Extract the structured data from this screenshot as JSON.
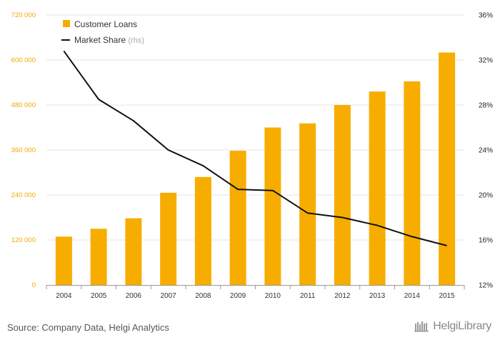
{
  "chart_data": {
    "type": "bar",
    "categories": [
      "2004",
      "2005",
      "2006",
      "2007",
      "2008",
      "2009",
      "2010",
      "2011",
      "2012",
      "2013",
      "2014",
      "2015"
    ],
    "series": [
      {
        "name": "Customer Loans",
        "type": "bar",
        "axis": "left",
        "values": [
          129000,
          150000,
          178000,
          246000,
          288000,
          358000,
          420000,
          431000,
          480000,
          516000,
          543000,
          620000
        ]
      },
      {
        "name": "Market Share",
        "type": "line",
        "axis": "right",
        "values": [
          32.8,
          28.5,
          26.6,
          24.0,
          22.6,
          20.5,
          20.4,
          18.4,
          18.0,
          17.3,
          16.3,
          15.5
        ]
      }
    ],
    "ylim_left": [
      0,
      720000
    ],
    "yticks_left": [
      "0",
      "120 000",
      "240 000",
      "360 000",
      "480 000",
      "600 000",
      "720 000"
    ],
    "ylim_right": [
      12,
      36
    ],
    "yticks_right": [
      "12%",
      "16%",
      "20%",
      "24%",
      "28%",
      "32%",
      "36%"
    ],
    "legend": [
      {
        "label": "Customer Loans",
        "color": "#f7ad00",
        "kind": "bar"
      },
      {
        "label": "Market Share",
        "suffix": "(rhs)",
        "color": "#111111",
        "kind": "line"
      }
    ],
    "legend_position": "top-left",
    "grid": true
  },
  "footer": {
    "source": "Source: Company Data, Helgi Analytics",
    "brand": "HelgiLibrary"
  },
  "colors": {
    "bar": "#f7ad00",
    "line": "#111111",
    "grid": "#e6e6e6",
    "left_axis_text": "#f0a800"
  }
}
